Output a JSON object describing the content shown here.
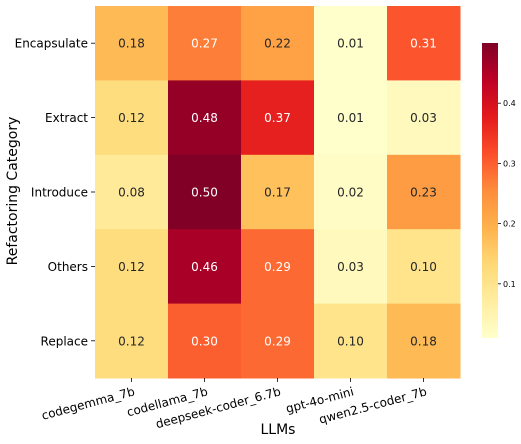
{
  "chart_data": {
    "type": "heatmap",
    "title": "",
    "xlabel": "LLMs",
    "ylabel": "Refactoring Category",
    "x_categories": [
      "codegemma_7b",
      "codellama_7b",
      "deepseek-coder_6.7b",
      "gpt-4o-mini",
      "qwen2.5-coder_7b"
    ],
    "y_categories": [
      "Encapsulate",
      "Extract",
      "Introduce",
      "Others",
      "Replace"
    ],
    "values": [
      [
        0.18,
        0.27,
        0.22,
        0.01,
        0.31
      ],
      [
        0.12,
        0.48,
        0.37,
        0.01,
        0.03
      ],
      [
        0.08,
        0.5,
        0.17,
        0.02,
        0.23
      ],
      [
        0.12,
        0.46,
        0.29,
        0.03,
        0.1
      ],
      [
        0.12,
        0.3,
        0.29,
        0.1,
        0.18
      ]
    ],
    "value_labels": [
      [
        "0.18",
        "0.27",
        "0.22",
        "0.01",
        "0.31"
      ],
      [
        "0.12",
        "0.48",
        "0.37",
        "0.01",
        "0.03"
      ],
      [
        "0.08",
        "0.50",
        "0.17",
        "0.02",
        "0.23"
      ],
      [
        "0.12",
        "0.46",
        "0.29",
        "0.03",
        "0.10"
      ],
      [
        "0.12",
        "0.30",
        "0.29",
        "0.10",
        "0.18"
      ]
    ],
    "colormap": "YlOrRd",
    "colorbar": {
      "range": [
        0.01,
        0.5
      ],
      "ticks": [
        0.1,
        0.2,
        0.3,
        0.4
      ],
      "tick_labels": [
        "0.1",
        "0.2",
        "0.3",
        "0.4"
      ]
    },
    "colors": {
      "low": "#ffffcc",
      "high": "#800026"
    }
  }
}
